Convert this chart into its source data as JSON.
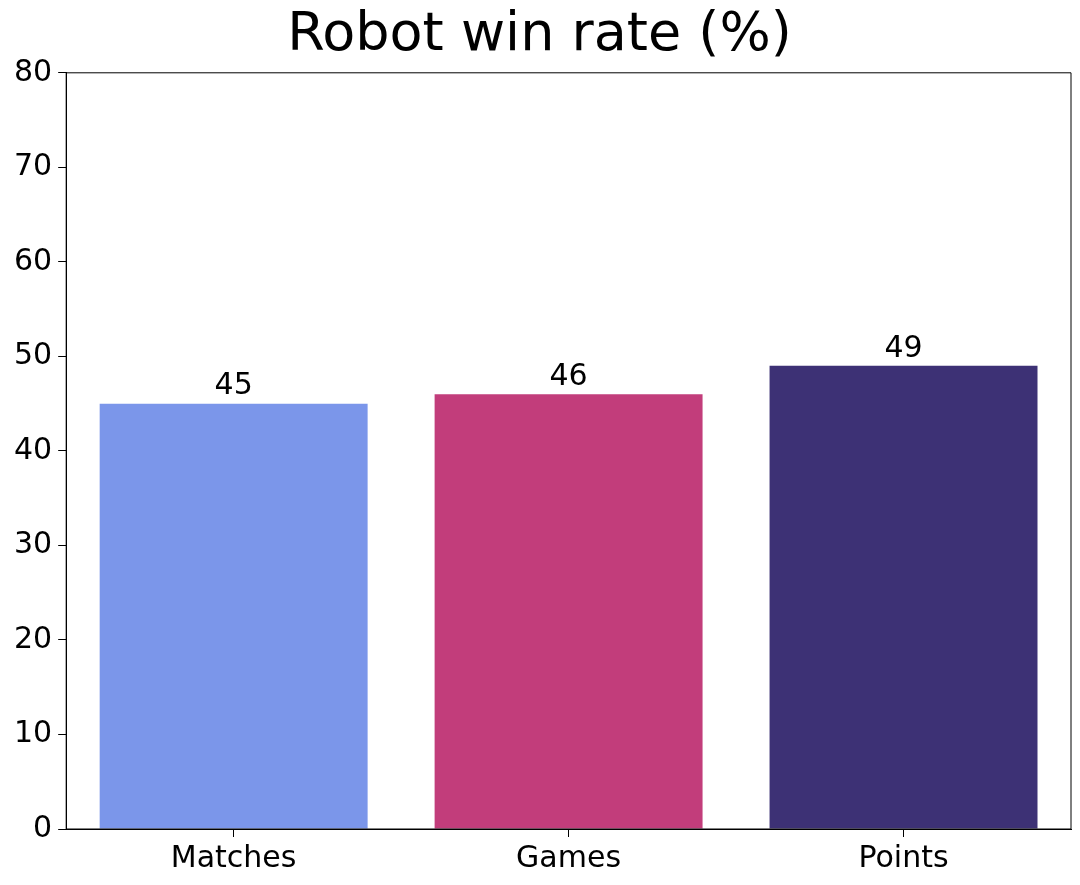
{
  "chart_data": {
    "type": "bar",
    "title": "Robot win rate (%)",
    "categories": [
      "Matches",
      "Games",
      "Points"
    ],
    "values": [
      45,
      46,
      49
    ],
    "colors": [
      "#7b96ea",
      "#c23d7b",
      "#3d3175"
    ],
    "ylim": [
      0,
      80
    ],
    "yticks": [
      0,
      10,
      20,
      30,
      40,
      50,
      60,
      70,
      80
    ],
    "grid": false,
    "data_labels": true
  }
}
